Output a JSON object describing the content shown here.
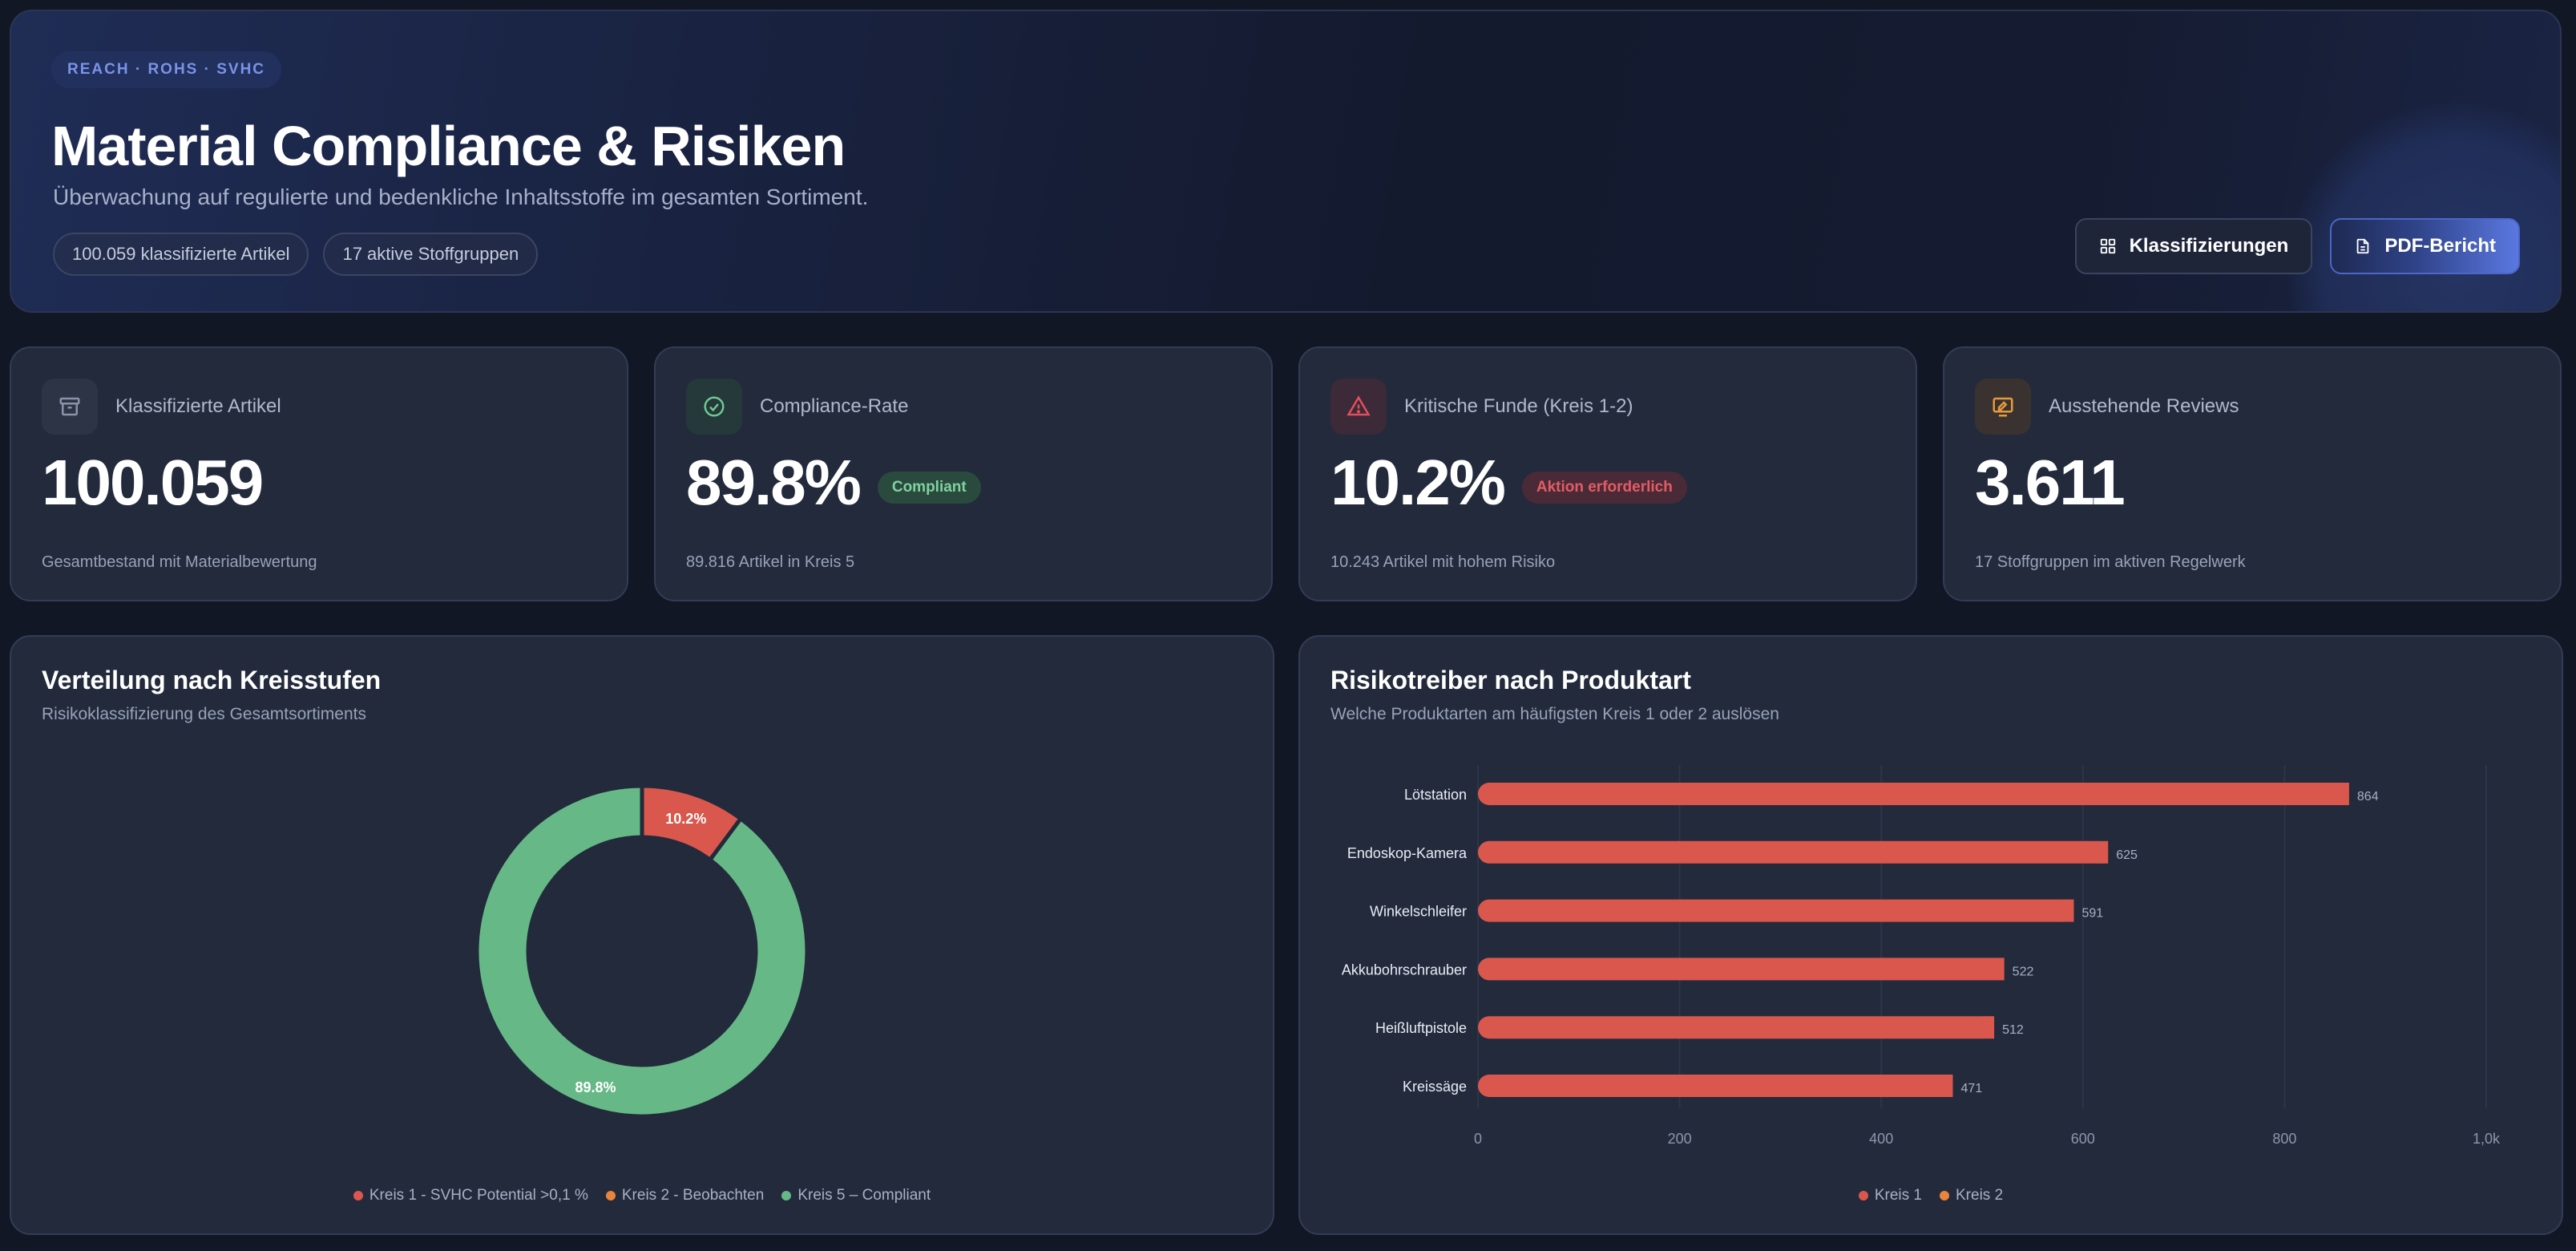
{
  "hero": {
    "tag": "REACH · ROHS · SVHC",
    "title": "Material Compliance & Risiken",
    "subtitle": "Überwachung auf regulierte und bedenkliche Inhaltsstoffe im gesamten Sortiment.",
    "pills": [
      "100.059 klassifizierte Artikel",
      "17 aktive Stoffgruppen"
    ],
    "actions": {
      "classifications_label": "Klassifizierungen",
      "pdf_label": "PDF-Bericht"
    }
  },
  "kpis": [
    {
      "label": "Klassifizierte Artikel",
      "value": "100.059",
      "badge": "",
      "foot": "Gesamtbestand mit Materialbewertung",
      "icon": "archive-icon",
      "icon_color": "#8a93a8"
    },
    {
      "label": "Compliance-Rate",
      "value": "89.8%",
      "badge": "Compliant",
      "foot": "89.816 Artikel in Kreis 5",
      "icon": "check-circle-icon",
      "icon_color": "#6fc993"
    },
    {
      "label": "Kritische Funde (Kreis 1-2)",
      "value": "10.2%",
      "badge": "Aktion erforderlich",
      "foot": "10.243 Artikel mit hohem Risiko",
      "icon": "warning-triangle-icon",
      "icon_color": "#e0505b"
    },
    {
      "label": "Ausstehende Reviews",
      "value": "3.611",
      "badge": "",
      "foot": "17 Stoffgruppen im aktiven Regelwerk",
      "icon": "review-icon",
      "icon_color": "#e59a3c"
    }
  ],
  "donut_panel": {
    "title": "Verteilung nach Kreisstufen",
    "subtitle": "Risikoklassifizierung des Gesamtsortiments"
  },
  "bar_panel": {
    "title": "Risikotreiber nach Produktart",
    "subtitle": "Welche Produktarten am häufigsten Kreis 1 oder 2 auslösen"
  },
  "colors": {
    "kreis1": "#d9574c",
    "kreis2": "#e8843c",
    "kreis5": "#66b987"
  },
  "chart_data": [
    {
      "type": "pie",
      "title": "Verteilung nach Kreisstufen",
      "labels": [
        "Kreis 1 - SVHC Potential >0,1 %",
        "Kreis 2 - Beobachten",
        "Kreis 5 – Compliant"
      ],
      "values": [
        10.2,
        0,
        89.8
      ],
      "data_labels": [
        "10.2%",
        "",
        "89.8%"
      ],
      "legend": "bottom"
    },
    {
      "type": "bar",
      "orientation": "horizontal",
      "title": "Risikotreiber nach Produktart",
      "categories": [
        "Lötstation",
        "Endoskop-Kamera",
        "Winkelschleifer",
        "Akkubohrschrauber",
        "Heißluftpistole",
        "Kreissäge"
      ],
      "series": [
        {
          "name": "Kreis 1",
          "values": [
            864,
            625,
            591,
            522,
            512,
            471
          ]
        },
        {
          "name": "Kreis 2",
          "values": [
            0,
            0,
            0,
            0,
            0,
            0
          ]
        }
      ],
      "x_ticks": [
        "0",
        "200",
        "400",
        "600",
        "800",
        "1,0k"
      ],
      "xlim": [
        0,
        1000
      ],
      "grid": true,
      "legend": "bottom"
    }
  ]
}
